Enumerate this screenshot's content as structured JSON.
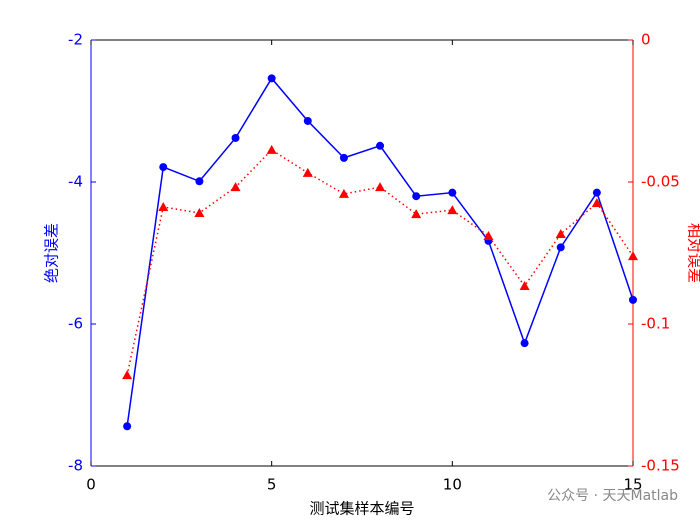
{
  "chart_data": {
    "type": "line",
    "x": [
      1,
      2,
      3,
      4,
      5,
      6,
      7,
      8,
      9,
      10,
      11,
      12,
      13,
      14,
      15
    ],
    "xlabel": "测试集样本编号",
    "ylabel": "绝对误差",
    "y2label": "相对误差",
    "xlim": [
      0,
      15
    ],
    "xticks": [
      0,
      5,
      10,
      15
    ],
    "ylim": [
      -8,
      -2
    ],
    "yticks": [
      -8,
      -6,
      -4,
      -2
    ],
    "y2lim": [
      -0.15,
      0
    ],
    "y2ticks": [
      -0.15,
      -0.1,
      -0.05,
      0
    ],
    "ycolor": "#0000ff",
    "y2color": "#ff0000",
    "series": [
      {
        "color": "#0000ff",
        "marker": "circle",
        "line_style": "solid",
        "values": [
          -7.44,
          -3.79,
          -3.99,
          -3.38,
          -2.54,
          -3.14,
          -3.66,
          -3.49,
          -4.2,
          -4.15,
          -4.83,
          -6.27,
          -4.92,
          -4.15,
          -5.66
        ]
      },
      {
        "color": "#ff0000",
        "marker": "triangle",
        "line_style": "dotted",
        "axis": "y2",
        "values": [
          -0.118,
          -0.0588,
          -0.0609,
          -0.0518,
          -0.0387,
          -0.0468,
          -0.0542,
          -0.0518,
          -0.0613,
          -0.0599,
          -0.069,
          -0.0866,
          -0.0683,
          -0.0574,
          -0.0761
        ]
      }
    ],
    "watermark": "公众号 · 天天Matlab"
  }
}
